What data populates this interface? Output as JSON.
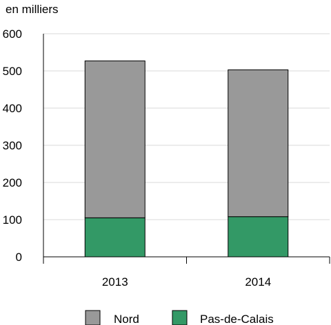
{
  "chart_data": {
    "type": "bar",
    "stacked": true,
    "ylabel": "en milliers",
    "categories": [
      "2013",
      "2014"
    ],
    "series": [
      {
        "name": "Pas-de-Calais",
        "values": [
          105,
          108
        ],
        "color": "#339966"
      },
      {
        "name": "Nord",
        "values": [
          422,
          395
        ],
        "color": "#999999"
      }
    ],
    "ylim": [
      0,
      600
    ],
    "yticks": [
      "0",
      "100",
      "200",
      "300",
      "400",
      "500",
      "600"
    ],
    "grid": true,
    "legend_position": "bottom",
    "legend_order": [
      "Nord",
      "Pas-de-Calais"
    ]
  }
}
